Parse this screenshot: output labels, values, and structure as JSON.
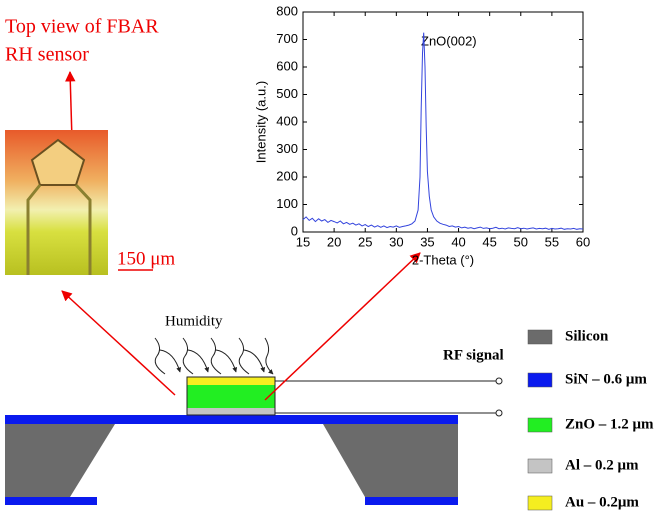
{
  "chart_data": {
    "type": "line",
    "xlabel": "2-Theta (°)",
    "ylabel": "Intensity (a.u.)",
    "annotation": "ZnO(002)",
    "xlim": [
      15,
      60
    ],
    "ylim": [
      0,
      800
    ],
    "xticks": [
      15,
      20,
      25,
      30,
      35,
      40,
      45,
      50,
      55,
      60
    ],
    "yticks": [
      0,
      100,
      200,
      300,
      400,
      500,
      600,
      700,
      800
    ],
    "x": [
      15,
      15.5,
      16,
      16.5,
      17,
      17.5,
      18,
      18.5,
      19,
      19.5,
      20,
      20.5,
      21,
      21.5,
      22,
      22.5,
      23,
      23.5,
      24,
      24.5,
      25,
      25.5,
      26,
      26.5,
      27,
      27.5,
      28,
      28.5,
      29,
      29.5,
      30,
      30.5,
      31,
      31.5,
      32,
      32.5,
      33,
      33.5,
      33.8,
      34.0,
      34.2,
      34.4,
      34.6,
      34.8,
      35.0,
      35.3,
      35.6,
      36,
      36.5,
      37,
      37.5,
      38,
      38.5,
      39,
      39.5,
      40,
      40.5,
      41,
      41.5,
      42,
      42.5,
      43,
      43.5,
      44,
      44.5,
      45,
      45.5,
      46,
      46.5,
      47,
      47.5,
      48,
      48.5,
      49,
      49.5,
      50,
      50.5,
      51,
      51.5,
      52,
      52.5,
      53,
      53.5,
      54,
      54.5,
      55,
      55.5,
      56,
      56.5,
      57,
      57.5,
      58,
      58.5,
      59,
      59.5,
      60
    ],
    "series": [
      {
        "color": "#3344dd",
        "values": [
          45,
          55,
          42,
          50,
          38,
          48,
          40,
          45,
          35,
          42,
          38,
          33,
          40,
          30,
          35,
          28,
          32,
          25,
          30,
          22,
          27,
          20,
          25,
          18,
          23,
          17,
          22,
          16,
          20,
          18,
          22,
          17,
          20,
          22,
          25,
          30,
          40,
          80,
          200,
          450,
          650,
          725,
          600,
          380,
          220,
          130,
          80,
          55,
          40,
          32,
          28,
          25,
          20,
          22,
          18,
          20,
          15,
          18,
          14,
          16,
          12,
          15,
          18,
          13,
          15,
          12,
          14,
          17,
          12,
          14,
          11,
          15,
          13,
          12,
          16,
          12,
          14,
          11,
          13,
          15,
          11,
          13,
          12,
          14,
          10,
          13,
          11,
          12,
          14,
          10,
          12,
          11,
          13,
          10,
          12,
          11
        ]
      }
    ]
  },
  "photo": {
    "caption_line1": "Top view of FBAR",
    "caption_line2": "RH sensor",
    "scale": "150 μm"
  },
  "cross_section": {
    "humidity": "Humidity",
    "rf_signal": "RF signal"
  },
  "legend": {
    "items": [
      {
        "label": "Silicon",
        "color": "#6b6b6b"
      },
      {
        "label": "SiN – 0.6 μm",
        "color": "#0a1aee"
      },
      {
        "label": "ZnO – 1.2 μm",
        "color": "#22ee22"
      },
      {
        "label": "Al – 0.2 μm",
        "color": "#c4c4c4"
      },
      {
        "label": "Au  – 0.2μm",
        "color": "#f5ee20"
      }
    ]
  }
}
